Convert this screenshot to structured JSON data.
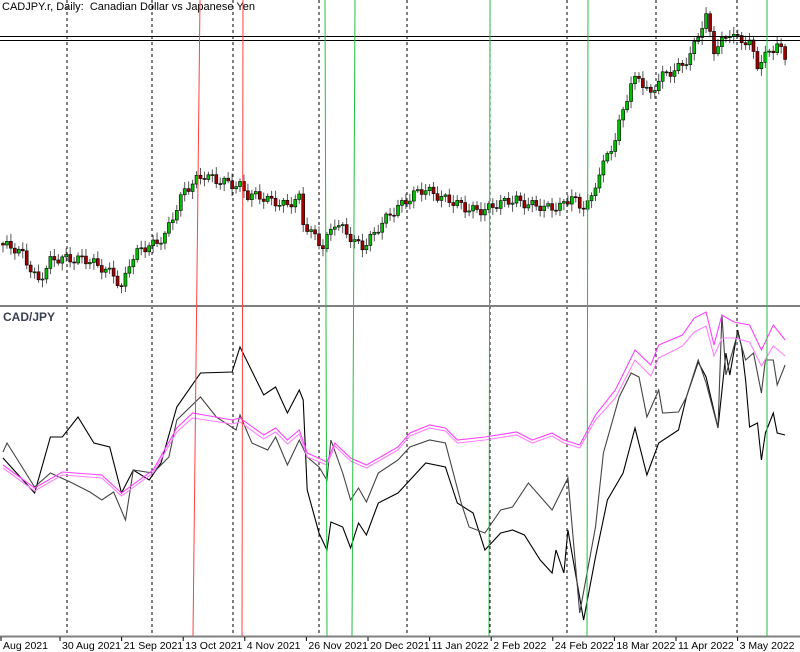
{
  "chart_data": [
    {
      "type": "candlestick",
      "title": "CADJPY.r, Daily:  Canadian Dollar vs Japanese Yen",
      "x_tick_labels": [
        "Aug 2021",
        "30 Aug 2021",
        "21 Sep 2021",
        "13 Oct 2021",
        "4 Nov 2021",
        "26 Nov 2021",
        "20 Dec 2021",
        "11 Jan 2022",
        "2 Feb 2022",
        "24 Feb 2022",
        "18 Mar 2022",
        "11 Apr 2022",
        "3 May 2022"
      ],
      "close_keypoints_bar_price": [
        [
          0,
          87.0
        ],
        [
          5,
          86.4
        ],
        [
          9,
          84.8
        ],
        [
          12,
          85.9
        ],
        [
          16,
          86.2
        ],
        [
          20,
          86.2
        ],
        [
          24,
          85.6
        ],
        [
          28,
          85.3
        ],
        [
          30,
          84.3
        ],
        [
          32,
          85.8
        ],
        [
          35,
          86.7
        ],
        [
          39,
          87.3
        ],
        [
          41,
          87.6
        ],
        [
          44,
          89.2
        ],
        [
          46,
          90.4
        ],
        [
          49,
          91.2
        ],
        [
          51,
          91.4
        ],
        [
          54,
          90.9
        ],
        [
          57,
          90.9
        ],
        [
          60,
          90.8
        ],
        [
          62,
          90.1
        ],
        [
          65,
          89.9
        ],
        [
          69,
          89.8
        ],
        [
          72,
          89.5
        ],
        [
          75,
          89.8
        ],
        [
          76,
          88.3
        ],
        [
          79,
          87.6
        ],
        [
          81,
          87.0
        ],
        [
          84,
          88.3
        ],
        [
          86,
          87.9
        ],
        [
          89,
          87.3
        ],
        [
          91,
          87.0
        ],
        [
          94,
          87.6
        ],
        [
          96,
          88.3
        ],
        [
          100,
          89.5
        ],
        [
          104,
          90.1
        ],
        [
          107,
          90.4
        ],
        [
          111,
          90.1
        ],
        [
          115,
          89.5
        ],
        [
          117,
          89.2
        ],
        [
          122,
          89.3
        ],
        [
          126,
          89.5
        ],
        [
          130,
          89.9
        ],
        [
          134,
          89.5
        ],
        [
          137,
          89.2
        ],
        [
          141,
          89.5
        ],
        [
          144,
          90.1
        ],
        [
          146,
          89.2
        ],
        [
          149,
          89.8
        ],
        [
          151,
          91.7
        ],
        [
          155,
          93.6
        ],
        [
          159,
          97.0
        ],
        [
          161,
          97.6
        ],
        [
          164,
          96.4
        ],
        [
          166,
          97.3
        ],
        [
          170,
          97.9
        ],
        [
          174,
          98.9
        ],
        [
          176,
          100.1
        ],
        [
          178,
          101.1
        ],
        [
          180,
          99.2
        ],
        [
          184,
          100.4
        ],
        [
          186,
          99.8
        ],
        [
          189,
          99.5
        ],
        [
          191,
          98.3
        ],
        [
          194,
          99.2
        ],
        [
          196,
          99.5
        ],
        [
          198,
          98.6
        ]
      ],
      "horizontal_levels": [
        100.03,
        99.78
      ],
      "colors": {
        "bull": "#00c000",
        "bear": "#a00000",
        "outline": "#000000"
      }
    },
    {
      "type": "line",
      "title": "CAD/JPY",
      "ylim": [
        -85,
        82
      ],
      "series": [
        {
          "color": "#000000",
          "points": [
            [
              0,
              6
            ],
            [
              8,
              -11.5
            ],
            [
              12,
              16.5
            ],
            [
              15,
              16.5
            ],
            [
              19,
              26.5
            ],
            [
              23,
              13.5
            ],
            [
              27,
              11.5
            ],
            [
              30,
              -11.5
            ],
            [
              33,
              0
            ],
            [
              37,
              -5
            ],
            [
              40,
              3.5
            ],
            [
              44,
              31.5
            ],
            [
              50,
              48.5
            ],
            [
              58,
              49
            ],
            [
              60,
              61.5
            ],
            [
              62,
              53.5
            ],
            [
              66,
              37.5
            ],
            [
              69,
              41.5
            ],
            [
              72,
              28.5
            ],
            [
              75,
              40
            ],
            [
              76,
              35
            ],
            [
              77,
              -10
            ],
            [
              80,
              -31.5
            ],
            [
              82,
              -40
            ],
            [
              83,
              -26
            ],
            [
              86,
              -28.5
            ],
            [
              88,
              -39
            ],
            [
              90,
              -26.5
            ],
            [
              92,
              -32.5
            ],
            [
              95,
              -16.5
            ],
            [
              100,
              -11.5
            ],
            [
              107,
              3.5
            ],
            [
              112,
              1.5
            ],
            [
              115,
              -16.5
            ],
            [
              119,
              -21.5
            ],
            [
              122,
              -40
            ],
            [
              126,
              -31.5
            ],
            [
              129,
              -30
            ],
            [
              132,
              -32.5
            ],
            [
              136,
              -45
            ],
            [
              139,
              -51.5
            ],
            [
              140,
              -40
            ],
            [
              142,
              -51.5
            ],
            [
              143,
              -30
            ],
            [
              147,
              -75
            ],
            [
              150,
              -43.5
            ],
            [
              153,
              -15
            ],
            [
              157,
              -1.5
            ],
            [
              160,
              21
            ],
            [
              163,
              -2.5
            ],
            [
              166,
              13.5
            ],
            [
              171,
              20
            ],
            [
              173,
              36.5
            ],
            [
              176,
              54
            ],
            [
              178,
              46.5
            ],
            [
              181,
              21
            ],
            [
              183,
              58.5
            ],
            [
              184,
              47.5
            ],
            [
              186,
              70
            ],
            [
              187,
              61.5
            ],
            [
              188,
              45
            ],
            [
              189,
              21.5
            ],
            [
              191,
              23.5
            ],
            [
              192,
              5
            ],
            [
              193,
              18.5
            ],
            [
              195,
              28.5
            ],
            [
              196,
              18.5
            ],
            [
              198,
              17.5
            ]
          ]
        },
        {
          "color": "#444444",
          "points": [
            [
              0,
              9
            ],
            [
              1,
              13.5
            ],
            [
              8,
              -8.5
            ],
            [
              12,
              -1.5
            ],
            [
              17,
              -6
            ],
            [
              22,
              -11
            ],
            [
              25,
              -15
            ],
            [
              28,
              -11
            ],
            [
              31,
              -25
            ],
            [
              33,
              0
            ],
            [
              38,
              -1.5
            ],
            [
              42,
              6.5
            ],
            [
              44,
              25
            ],
            [
              50,
              36.5
            ],
            [
              54,
              26.5
            ],
            [
              59,
              20
            ],
            [
              60,
              27.5
            ],
            [
              63,
              13.5
            ],
            [
              67,
              10
            ],
            [
              69,
              16.5
            ],
            [
              72,
              2.5
            ],
            [
              75,
              15
            ],
            [
              77,
              6.5
            ],
            [
              80,
              1.5
            ],
            [
              82,
              -5
            ],
            [
              83,
              15
            ],
            [
              86,
              -1.5
            ],
            [
              88,
              -15
            ],
            [
              90,
              -9
            ],
            [
              92,
              -16
            ],
            [
              95,
              -1.5
            ],
            [
              100,
              5
            ],
            [
              103,
              11.5
            ],
            [
              108,
              15
            ],
            [
              112,
              13.5
            ],
            [
              116,
              -16.5
            ],
            [
              118,
              -28.5
            ],
            [
              122,
              -31.5
            ],
            [
              126,
              -20
            ],
            [
              129,
              -18.5
            ],
            [
              133,
              -6.5
            ],
            [
              139,
              -20
            ],
            [
              143,
              -4
            ],
            [
              146,
              -71.5
            ],
            [
              150,
              -28.5
            ],
            [
              152,
              8.5
            ],
            [
              156,
              36.5
            ],
            [
              159,
              48.5
            ],
            [
              161,
              46.5
            ],
            [
              163,
              26.5
            ],
            [
              166,
              40
            ],
            [
              167,
              28.5
            ],
            [
              171,
              29
            ],
            [
              173,
              36.5
            ],
            [
              176,
              55
            ],
            [
              178,
              43.5
            ],
            [
              181,
              21
            ],
            [
              182,
              77.5
            ],
            [
              183,
              47.5
            ],
            [
              186,
              68.5
            ],
            [
              188,
              55
            ],
            [
              190,
              58.5
            ],
            [
              192,
              38.5
            ],
            [
              193,
              55
            ],
            [
              195,
              55
            ],
            [
              196,
              42.5
            ],
            [
              198,
              52.5
            ]
          ]
        },
        {
          "color": "#ff40ff",
          "points": [
            [
              0,
              2.5
            ],
            [
              8,
              -9
            ],
            [
              15,
              -1
            ],
            [
              25,
              -2.5
            ],
            [
              30,
              -11.5
            ],
            [
              38,
              0
            ],
            [
              44,
              21
            ],
            [
              48,
              28.5
            ],
            [
              58,
              25
            ],
            [
              60,
              26
            ],
            [
              66,
              17.5
            ],
            [
              69,
              21
            ],
            [
              72,
              15
            ],
            [
              75,
              20
            ],
            [
              77,
              8.5
            ],
            [
              82,
              4
            ],
            [
              84,
              13.5
            ],
            [
              88,
              6
            ],
            [
              92,
              2.5
            ],
            [
              100,
              11.5
            ],
            [
              103,
              18.5
            ],
            [
              108,
              22.5
            ],
            [
              112,
              21
            ],
            [
              115,
              15
            ],
            [
              122,
              16.5
            ],
            [
              130,
              19
            ],
            [
              134,
              15
            ],
            [
              139,
              18.5
            ],
            [
              142,
              15
            ],
            [
              146,
              12.5
            ],
            [
              150,
              27.5
            ],
            [
              155,
              40
            ],
            [
              160,
              60
            ],
            [
              164,
              52.5
            ],
            [
              166,
              62.5
            ],
            [
              172,
              67.5
            ],
            [
              175,
              76
            ],
            [
              178,
              79
            ],
            [
              180,
              62.5
            ],
            [
              182,
              77.5
            ],
            [
              185,
              74
            ],
            [
              189,
              72.5
            ],
            [
              192,
              60
            ],
            [
              195,
              72.5
            ],
            [
              198,
              65
            ]
          ]
        },
        {
          "color": "#ff80ff",
          "points": [
            [
              0,
              1
            ],
            [
              8,
              -10.5
            ],
            [
              15,
              -2.5
            ],
            [
              25,
              -4
            ],
            [
              30,
              -13
            ],
            [
              38,
              -1.5
            ],
            [
              44,
              19
            ],
            [
              48,
              26
            ],
            [
              58,
              23
            ],
            [
              60,
              24
            ],
            [
              66,
              15.5
            ],
            [
              69,
              19
            ],
            [
              72,
              13
            ],
            [
              75,
              18
            ],
            [
              77,
              6.5
            ],
            [
              82,
              2.5
            ],
            [
              84,
              12
            ],
            [
              88,
              4.5
            ],
            [
              92,
              1
            ],
            [
              100,
              10
            ],
            [
              103,
              17
            ],
            [
              108,
              21
            ],
            [
              112,
              19.5
            ],
            [
              115,
              13.5
            ],
            [
              122,
              15
            ],
            [
              130,
              17.5
            ],
            [
              134,
              13.5
            ],
            [
              139,
              17
            ],
            [
              142,
              13.5
            ],
            [
              146,
              11
            ],
            [
              150,
              25
            ],
            [
              155,
              36
            ],
            [
              160,
              55
            ],
            [
              164,
              47
            ],
            [
              166,
              56
            ],
            [
              172,
              62
            ],
            [
              175,
              69
            ],
            [
              178,
              72
            ],
            [
              180,
              57
            ],
            [
              182,
              66
            ],
            [
              185,
              66
            ],
            [
              189,
              64
            ],
            [
              192,
              52
            ],
            [
              195,
              62
            ],
            [
              198,
              57
            ]
          ]
        }
      ]
    }
  ],
  "markers": {
    "red_lines_color": "#ff4040",
    "green_lines_color": "#20c040"
  }
}
